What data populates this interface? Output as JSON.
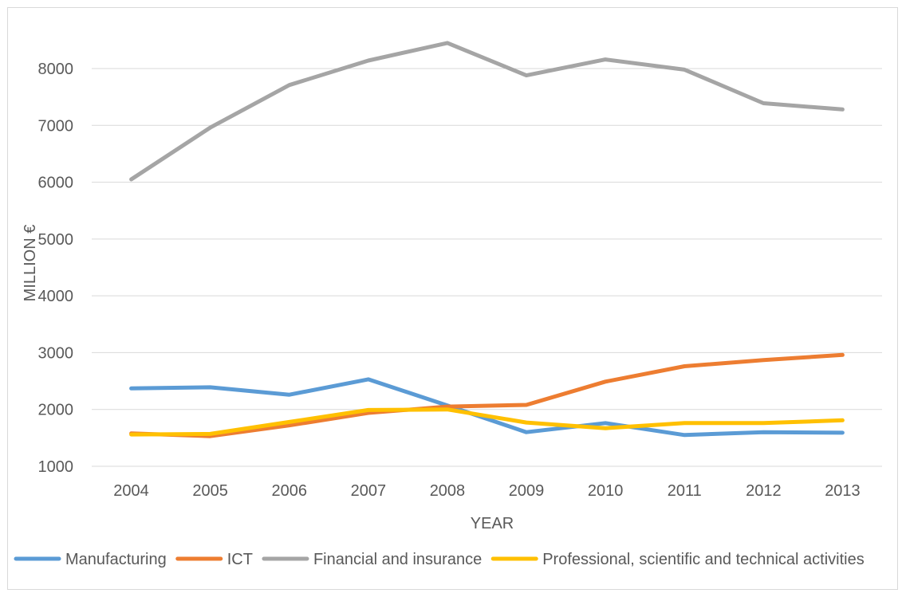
{
  "chart_data": {
    "type": "line",
    "title": "",
    "xlabel": "YEAR",
    "ylabel": "MILLION €",
    "categories": [
      "2004",
      "2005",
      "2006",
      "2007",
      "2008",
      "2009",
      "2010",
      "2011",
      "2012",
      "2013"
    ],
    "ylim": [
      1000,
      8000
    ],
    "yticks": [
      "1000",
      "2000",
      "3000",
      "4000",
      "5000",
      "6000",
      "7000",
      "8000"
    ],
    "grid": true,
    "legend_position": "bottom",
    "series": [
      {
        "name": "Manufacturing",
        "color": "#5b9bd5",
        "values": [
          2370,
          2390,
          2260,
          2530,
          2070,
          1600,
          1760,
          1550,
          1600,
          1590
        ]
      },
      {
        "name": "ICT",
        "color": "#ed7d31",
        "values": [
          1580,
          1530,
          1720,
          1940,
          2050,
          2080,
          2490,
          2760,
          2870,
          2960
        ]
      },
      {
        "name": "Financial and insurance",
        "color": "#a5a5a5",
        "values": [
          6050,
          6960,
          7710,
          8140,
          8450,
          7880,
          8160,
          7980,
          7390,
          7280
        ]
      },
      {
        "name": "Professional, scientific and technical activities",
        "color": "#ffc000",
        "values": [
          1560,
          1570,
          1780,
          1990,
          2000,
          1770,
          1670,
          1760,
          1760,
          1810
        ]
      }
    ]
  }
}
